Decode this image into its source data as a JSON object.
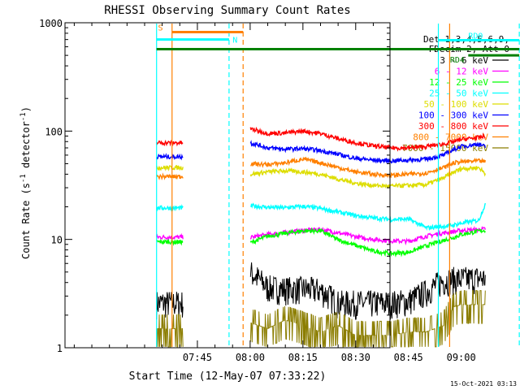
{
  "chart_data": {
    "type": "line",
    "title": "RHESSI Observing Summary Count Rates",
    "xlabel": "Start Time (12-May-07 07:33:22)",
    "ylabel": "Count Rate (s⁻¹ detector⁻¹)",
    "ylabel_parts": {
      "main": "Count Rate (s",
      "sup1": "-1",
      "mid": " detector",
      "sup2": "-1",
      "end": ")"
    },
    "y_scale": "log",
    "ylim": [
      1,
      1000
    ],
    "y_ticks": [
      {
        "value": 1,
        "label": "1"
      },
      {
        "value": 10,
        "label": "10"
      },
      {
        "value": 100,
        "label": "100"
      },
      {
        "value": 1000,
        "label": "1000"
      }
    ],
    "x_range_minutes": [
      7.37,
      99.75
    ],
    "x_ticks": [
      {
        "t": 45,
        "label": "07:45"
      },
      {
        "t": 60,
        "label": "08:00"
      },
      {
        "t": 75,
        "label": "08:15"
      },
      {
        "t": 90,
        "label": "08:30"
      },
      {
        "t": 105,
        "label": "08:45"
      },
      {
        "t": 120,
        "label": "09:00"
      }
    ],
    "legend_header": [
      "Det 1,3,4,5,6,9,",
      "FDecim 2, Att 0"
    ],
    "legend_placement": "right",
    "gap_minutes": [
      41.5,
      58.0
    ],
    "series": [
      {
        "name": "3 - 6 keV",
        "color": "#000000",
        "x": [
          33.4,
          37,
          41,
          58,
          60,
          65,
          70,
          75,
          80,
          85,
          90,
          95,
          100,
          105,
          110,
          115,
          118,
          120,
          125,
          127
        ],
        "values": [
          2.6,
          2.6,
          2.6,
          null,
          5.0,
          3.6,
          3.5,
          3.5,
          3.4,
          2.6,
          2.6,
          2.6,
          2.6,
          2.7,
          3.3,
          4.2,
          4.3,
          4.3,
          4.4,
          4.4
        ]
      },
      {
        "name": "6 - 12 keV",
        "color": "#ff00ff",
        "x": [
          33.4,
          37,
          41,
          58,
          60,
          65,
          70,
          75,
          80,
          85,
          90,
          95,
          100,
          105,
          110,
          115,
          118,
          120,
          125,
          127
        ],
        "values": [
          10.5,
          10.5,
          10.5,
          null,
          10.4,
          11.1,
          11.6,
          12.1,
          12.4,
          11.5,
          10.6,
          10.0,
          9.7,
          9.6,
          10.7,
          11.5,
          11.8,
          12.1,
          12.3,
          12.5
        ]
      },
      {
        "name": "12 - 25 keV",
        "color": "#00ff00",
        "x": [
          33.4,
          37,
          41,
          58,
          60,
          65,
          70,
          75,
          80,
          85,
          90,
          95,
          100,
          105,
          110,
          115,
          118,
          120,
          125,
          127
        ],
        "values": [
          9.5,
          9.5,
          9.5,
          null,
          9.3,
          10.7,
          11.4,
          12.0,
          12.0,
          9.9,
          8.8,
          7.8,
          7.4,
          7.6,
          8.7,
          9.8,
          10.5,
          11.1,
          11.9,
          12.2
        ]
      },
      {
        "name": "25 - 50 keV",
        "color": "#00ffff",
        "x": [
          33.4,
          37,
          41,
          58,
          60,
          65,
          70,
          75,
          80,
          85,
          90,
          95,
          100,
          105,
          110,
          115,
          118,
          120,
          125,
          127
        ],
        "values": [
          19.5,
          19.5,
          19.5,
          null,
          20.5,
          19.8,
          19.6,
          20.2,
          19.3,
          17.9,
          16.6,
          15.8,
          15.3,
          15.4,
          12.8,
          13.2,
          13.6,
          14.1,
          15.0,
          21.5
        ]
      },
      {
        "name": "50 - 100 keV",
        "color": "#dddd00",
        "x": [
          33.4,
          37,
          41,
          58,
          60,
          65,
          70,
          75,
          80,
          85,
          90,
          95,
          100,
          105,
          110,
          115,
          118,
          120,
          125,
          127
        ],
        "values": [
          46,
          46,
          46,
          null,
          40,
          42,
          43,
          42,
          40,
          36,
          33,
          31.5,
          31,
          31.5,
          32,
          37,
          42,
          45,
          46,
          40
        ]
      },
      {
        "name": "100 - 300 keV",
        "color": "#0000ff",
        "x": [
          33.4,
          37,
          41,
          58,
          60,
          65,
          70,
          75,
          80,
          85,
          90,
          95,
          100,
          105,
          110,
          115,
          118,
          120,
          125,
          127
        ],
        "values": [
          58,
          58,
          58,
          null,
          78,
          70,
          68,
          69,
          66,
          61,
          56,
          54,
          53,
          54,
          55,
          60,
          68,
          72,
          76,
          71
        ]
      },
      {
        "name": "300 - 800 keV",
        "color": "#ff0000",
        "x": [
          33.4,
          37,
          41,
          58,
          60,
          65,
          70,
          75,
          80,
          85,
          90,
          95,
          100,
          105,
          110,
          115,
          118,
          120,
          125,
          127
        ],
        "values": [
          78,
          78,
          78,
          null,
          105,
          95,
          96,
          100,
          95,
          85,
          78,
          73,
          70,
          70,
          72,
          76,
          80,
          84,
          87,
          90
        ]
      },
      {
        "name": "800 - 7000 keV",
        "color": "#ff8000",
        "x": [
          33.4,
          37,
          41,
          58,
          60,
          65,
          70,
          75,
          80,
          85,
          90,
          95,
          100,
          105,
          110,
          115,
          118,
          120,
          125,
          127
        ],
        "values": [
          38,
          38,
          38,
          null,
          50,
          49,
          51,
          55,
          51,
          46,
          42,
          40,
          39,
          40,
          41,
          46,
          51,
          52,
          53,
          52
        ]
      },
      {
        "name": "7000 - 15000 keV",
        "color": "#8b7d00",
        "x": [
          33.4,
          37,
          41,
          58,
          60,
          65,
          70,
          75,
          80,
          85,
          90,
          95,
          100,
          105,
          110,
          115,
          118,
          120,
          125,
          127
        ],
        "values": [
          1.5,
          1.5,
          1.5,
          null,
          1.7,
          1.5,
          1.8,
          1.6,
          1.4,
          1.6,
          1.3,
          1.3,
          1.3,
          1.4,
          1.4,
          1.6,
          2.4,
          2.5,
          2.5,
          2.5
        ]
      }
    ],
    "annotations": {
      "vertical_lines": [
        {
          "t": 33.4,
          "color": "#00ffff",
          "style": "solid"
        },
        {
          "t": 37.8,
          "color": "#ff8000",
          "style": "solid"
        },
        {
          "t": 54.0,
          "color": "#00ffff",
          "style": "dashed"
        },
        {
          "t": 58.0,
          "color": "#ff8000",
          "style": "dashed"
        },
        {
          "t": 113.5,
          "color": "#00ffff",
          "style": "solid"
        },
        {
          "t": 116.7,
          "color": "#ff8000",
          "style": "solid"
        },
        {
          "t": 136.5,
          "color": "#00ffff",
          "style": "dashed"
        }
      ],
      "flag_bars": [
        {
          "label": "S",
          "color": "#ff8000",
          "t_start": 37.8,
          "t_end": 58.0,
          "y_level": 820,
          "label_t": 33.8
        },
        {
          "label": "N",
          "color": "#00ffff",
          "t_start": 33.4,
          "t_end": 54.0,
          "y_level": 700,
          "label_t": 55.0
        },
        {
          "label": "",
          "color": "#008000",
          "t_start": 33.4,
          "t_end": 136.5,
          "y_level": 570
        },
        {
          "label": "RD0",
          "color": "#00ffff",
          "t_start": 113.5,
          "t_end": 136.5,
          "y_level": 690,
          "label_t": 122.0
        },
        {
          "label": "RD4",
          "color": "#008000",
          "t_start": 122.0,
          "t_end": 136.5,
          "y_level": 500,
          "label_t": 116.8
        }
      ]
    }
  },
  "footer_timestamp": "15-Oct-2021 03:13"
}
